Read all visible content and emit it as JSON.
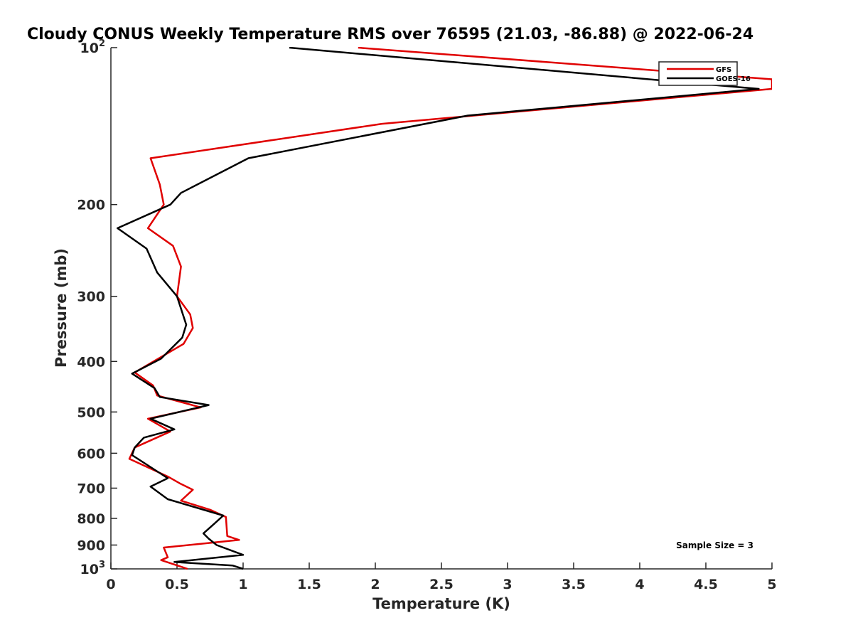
{
  "chart_data": {
    "type": "line",
    "title": "Cloudy CONUS Weekly Temperature RMS over 76595 (21.03, -86.88) @ 2022-06-24",
    "xlabel": "Temperature (K)",
    "ylabel": "Pressure (mb)",
    "xlim": [
      0,
      5
    ],
    "ylim": [
      100,
      1000
    ],
    "yscale": "log",
    "yreversed": true,
    "grid": false,
    "legend_position": "top-right",
    "x_ticks": [
      "0",
      "0.5",
      "1",
      "1.5",
      "2",
      "2.5",
      "3",
      "3.5",
      "4",
      "4.5",
      "5"
    ],
    "y_ticks": [
      {
        "value": 100,
        "base": "10",
        "exp": "2"
      },
      {
        "value": 200,
        "label": "200"
      },
      {
        "value": 300,
        "label": "300"
      },
      {
        "value": 400,
        "label": "400"
      },
      {
        "value": 500,
        "label": "500"
      },
      {
        "value": 600,
        "label": "600"
      },
      {
        "value": 700,
        "label": "700"
      },
      {
        "value": 800,
        "label": "800"
      },
      {
        "value": 900,
        "label": "900"
      },
      {
        "value": 1000,
        "base": "10",
        "exp": "3"
      }
    ],
    "annotation": "Sample Size = 3",
    "series": [
      {
        "name": "GFS",
        "color": "#e00000",
        "points": [
          [
            1.87,
            100
          ],
          [
            5.0,
            115
          ],
          [
            5.0,
            120
          ],
          [
            2.05,
            140
          ],
          [
            0.3,
            163
          ],
          [
            0.37,
            183
          ],
          [
            0.4,
            200
          ],
          [
            0.28,
            222
          ],
          [
            0.47,
            240
          ],
          [
            0.53,
            263
          ],
          [
            0.5,
            300
          ],
          [
            0.6,
            325
          ],
          [
            0.62,
            345
          ],
          [
            0.55,
            370
          ],
          [
            0.18,
            420
          ],
          [
            0.32,
            445
          ],
          [
            0.35,
            465
          ],
          [
            0.68,
            490
          ],
          [
            0.28,
            515
          ],
          [
            0.45,
            545
          ],
          [
            0.18,
            585
          ],
          [
            0.14,
            615
          ],
          [
            0.43,
            665
          ],
          [
            0.52,
            685
          ],
          [
            0.62,
            705
          ],
          [
            0.53,
            740
          ],
          [
            0.75,
            770
          ],
          [
            0.87,
            795
          ],
          [
            0.88,
            865
          ],
          [
            0.97,
            880
          ],
          [
            0.4,
            910
          ],
          [
            0.43,
            950
          ],
          [
            0.38,
            962
          ],
          [
            0.58,
            1000
          ]
        ]
      },
      {
        "name": "GOES-16",
        "color": "#000000",
        "points": [
          [
            1.35,
            100
          ],
          [
            4.9,
            120
          ],
          [
            2.7,
            135
          ],
          [
            1.04,
            163
          ],
          [
            0.53,
            190
          ],
          [
            0.45,
            200
          ],
          [
            0.05,
            222
          ],
          [
            0.27,
            243
          ],
          [
            0.35,
            270
          ],
          [
            0.5,
            300
          ],
          [
            0.57,
            340
          ],
          [
            0.54,
            360
          ],
          [
            0.38,
            395
          ],
          [
            0.16,
            422
          ],
          [
            0.33,
            450
          ],
          [
            0.37,
            468
          ],
          [
            0.74,
            485
          ],
          [
            0.3,
            515
          ],
          [
            0.48,
            540
          ],
          [
            0.25,
            560
          ],
          [
            0.18,
            585
          ],
          [
            0.16,
            605
          ],
          [
            0.43,
            670
          ],
          [
            0.3,
            695
          ],
          [
            0.43,
            735
          ],
          [
            0.85,
            790
          ],
          [
            0.78,
            820
          ],
          [
            0.7,
            855
          ],
          [
            0.74,
            875
          ],
          [
            0.8,
            900
          ],
          [
            1.0,
            940
          ],
          [
            0.48,
            970
          ],
          [
            0.92,
            985
          ],
          [
            1.0,
            1000
          ]
        ]
      }
    ]
  }
}
